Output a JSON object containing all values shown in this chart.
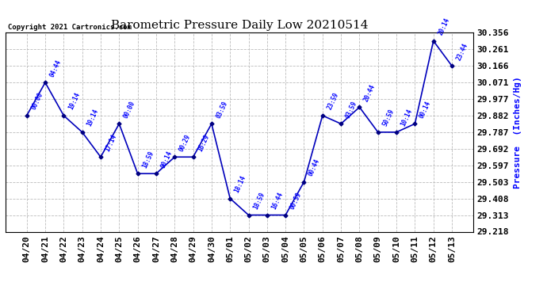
{
  "title": "Barometric Pressure Daily Low 20210514",
  "ylabel": "Pressure  (Inches/Hg)",
  "copyright": "Copyright 2021 Cartronics.com",
  "line_color": "#0000bb",
  "marker_color": "#000080",
  "background_color": "#ffffff",
  "grid_color": "#bbbbbb",
  "x_labels": [
    "04/20",
    "04/21",
    "04/22",
    "04/23",
    "04/24",
    "04/25",
    "04/26",
    "04/27",
    "04/28",
    "04/29",
    "04/30",
    "05/01",
    "05/02",
    "05/03",
    "05/04",
    "05/05",
    "05/06",
    "05/07",
    "05/08",
    "05/09",
    "05/10",
    "05/11",
    "05/12",
    "05/13"
  ],
  "time_labels": [
    "00:00",
    "04:44",
    "19:14",
    "19:14",
    "17:14",
    "00:00",
    "18:59",
    "00:14",
    "00:29",
    "16:29",
    "03:59",
    "18:14",
    "18:59",
    "16:44",
    "00:59",
    "00:44",
    "23:59",
    "03:59",
    "20:44",
    "50:59",
    "10:14",
    "00:14",
    "20:14",
    "23:44"
  ],
  "values": [
    29.882,
    30.071,
    29.882,
    29.787,
    29.645,
    29.835,
    29.55,
    29.55,
    29.645,
    29.645,
    29.835,
    29.408,
    29.313,
    29.313,
    29.313,
    29.503,
    29.882,
    29.835,
    29.93,
    29.787,
    29.787,
    29.835,
    30.309,
    30.166
  ],
  "ylim_min": 29.218,
  "ylim_max": 30.356,
  "yticks": [
    29.218,
    29.313,
    29.408,
    29.503,
    29.597,
    29.692,
    29.787,
    29.882,
    29.977,
    30.071,
    30.166,
    30.261,
    30.356
  ]
}
